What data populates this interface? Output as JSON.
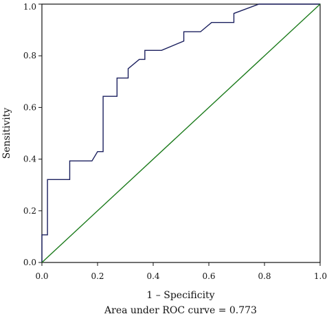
{
  "chart_data": {
    "type": "line",
    "xlabel": "1 – Specificity",
    "ylabel": "Sensitivity",
    "caption": "Area under ROC curve = 0.773",
    "xlim": [
      0,
      1
    ],
    "ylim": [
      0,
      1
    ],
    "x_ticks": [
      "0.0",
      "0.2",
      "0.4",
      "0.6",
      "0.8",
      "1.0"
    ],
    "y_ticks": [
      "0.0",
      "0.2",
      "0.4",
      "0.6",
      "0.8",
      "1.0"
    ],
    "grid": false,
    "legend": "none",
    "series": [
      {
        "color": "#1a1f5e",
        "x": [
          0,
          0,
          0.02,
          0.02,
          0.1,
          0.1,
          0.18,
          0.2,
          0.22,
          0.22,
          0.27,
          0.27,
          0.31,
          0.31,
          0.35,
          0.37,
          0.37,
          0.43,
          0.51,
          0.51,
          0.57,
          0.61,
          0.69,
          0.69,
          0.78,
          0.78,
          1.0
        ],
        "y": [
          0,
          0.107,
          0.107,
          0.321,
          0.321,
          0.393,
          0.393,
          0.429,
          0.429,
          0.643,
          0.643,
          0.714,
          0.714,
          0.75,
          0.786,
          0.786,
          0.821,
          0.821,
          0.857,
          0.893,
          0.893,
          0.929,
          0.929,
          0.964,
          1.0,
          1.0,
          1.0
        ]
      },
      {
        "color": "#1a7a1a",
        "x": [
          0,
          1
        ],
        "y": [
          0,
          1
        ]
      }
    ]
  }
}
